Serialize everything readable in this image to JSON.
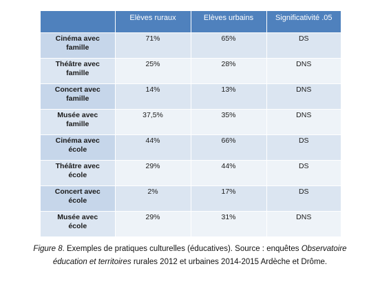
{
  "table": {
    "headers": [
      "",
      "Elèves ruraux",
      "Elèves urbains",
      "Significativité .05"
    ],
    "rows": [
      {
        "label_line1": "Cinéma avec",
        "label_line2": "famille",
        "rural": "71%",
        "urbain": "65%",
        "sig": "DS"
      },
      {
        "label_line1": "Théâtre avec",
        "label_line2": "famille",
        "rural": "25%",
        "urbain": "28%",
        "sig": "DNS"
      },
      {
        "label_line1": "Concert avec",
        "label_line2": "famille",
        "rural": "14%",
        "urbain": "13%",
        "sig": "DNS"
      },
      {
        "label_line1": "Musée avec",
        "label_line2": "famille",
        "rural": "37,5%",
        "urbain": "35%",
        "sig": "DNS"
      },
      {
        "label_line1": "Cinéma avec",
        "label_line2": "école",
        "rural": "44%",
        "urbain": "66%",
        "sig": "DS"
      },
      {
        "label_line1": "Théâtre avec",
        "label_line2": "école",
        "rural": "29%",
        "urbain": "44%",
        "sig": "DS"
      },
      {
        "label_line1": "Concert avec",
        "label_line2": "école",
        "rural": "2%",
        "urbain": "17%",
        "sig": "DS"
      },
      {
        "label_line1": "Musée avec",
        "label_line2": "école",
        "rural": "29%",
        "urbain": "31%",
        "sig": "DNS"
      }
    ]
  },
  "caption": {
    "figure_label": "Figure 8",
    "text_a": ". Exemples de pratiques culturelles (éducatives). Source : enquêtes ",
    "italic_b": "Observatoire",
    "italic_c": "éducation et territoires",
    "text_d": " rurales 2012 et urbaines 2014-2015 Ardèche et Drôme."
  }
}
